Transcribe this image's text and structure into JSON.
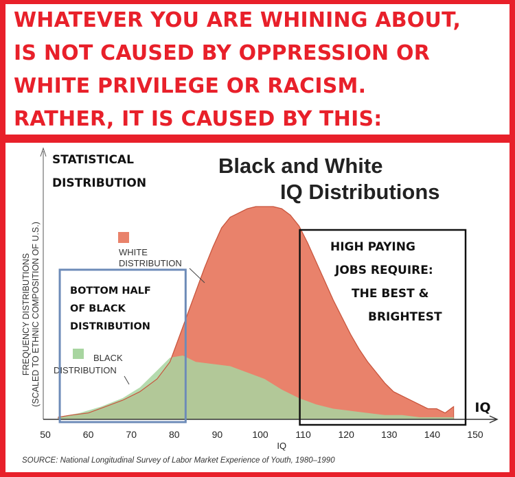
{
  "header": {
    "lines": [
      "WHATEVER YOU ARE WHINING ABOUT,",
      "IS NOT CAUSED BY OPPRESSION OR",
      "WHITE PRIVILEGE OR RACISM.",
      "RATHER, IT IS CAUSED BY THIS:"
    ]
  },
  "colors": {
    "frame": "#e8202a",
    "white_series": "#e9826b",
    "black_series": "#a8d5a0",
    "bottom_half_box": "#6d8bb8",
    "high_paying_box": "#111111"
  },
  "chart_data": {
    "type": "area",
    "title": "Black and White",
    "subtitle": "IQ Distributions",
    "xlabel": "IQ",
    "xaxis_end_label": "IQ",
    "ylabel_line1": "FREQUENCY DISTRIBUTIONS",
    "ylabel_line2": "(SCALED TO ETHNIC COMPOSITION OF U.S.)",
    "xlim": [
      50,
      150
    ],
    "x_ticks": [
      50,
      60,
      70,
      80,
      90,
      100,
      110,
      120,
      130,
      140,
      150
    ],
    "ylim": [
      0,
      100
    ],
    "grid": false,
    "series": [
      {
        "label_line1": "WHITE",
        "label_line2": "DISTRIBUTION",
        "color": "#e9826b",
        "x": [
          53,
          56,
          60,
          64,
          68,
          72,
          76,
          79,
          81,
          83,
          85,
          87,
          89,
          91,
          93,
          95,
          97,
          99,
          101,
          103,
          105,
          107,
          109,
          111,
          113,
          115,
          117,
          119,
          121,
          123,
          125,
          127,
          129,
          131,
          133,
          135,
          137,
          139,
          141,
          143,
          145
        ],
        "y": [
          1,
          2,
          3,
          6,
          9,
          13,
          19,
          27,
          38,
          49,
          60,
          71,
          81,
          90,
          95,
          97,
          99,
          100,
          100,
          100,
          99,
          96,
          91,
          83,
          74,
          65,
          56,
          48,
          40,
          33,
          27,
          22,
          17,
          13,
          11,
          9,
          7,
          5,
          5,
          3,
          6
        ]
      },
      {
        "label_line1": "BLACK",
        "label_line2": "DISTRIBUTION",
        "color": "#a8d5a0",
        "x": [
          53,
          58,
          63,
          68,
          72,
          76,
          79,
          82,
          85,
          89,
          93,
          97,
          101,
          105,
          109,
          113,
          117,
          121,
          125,
          129,
          133,
          137,
          141,
          145
        ],
        "y": [
          1,
          3,
          6,
          10,
          15,
          23,
          29,
          30,
          27,
          26,
          25,
          22,
          19,
          14,
          10,
          7,
          5,
          4,
          3,
          2,
          2,
          1,
          1,
          1
        ]
      }
    ],
    "annotations": {
      "top_left_line1": "STATISTICAL",
      "top_left_line2": "DISTRIBUTION",
      "bottom_half": [
        "BOTTOM HALF",
        "OF BLACK",
        "DISTRIBUTION"
      ],
      "high_paying": [
        "HIGH PAYING",
        "JOBS REQUIRE:",
        "THE BEST &",
        "BRIGHTEST"
      ]
    },
    "bottom_half_range": [
      54,
      82
    ],
    "high_paying_range": [
      110,
      150
    ],
    "source": "SOURCE: National Longitudinal Survey of Labor Market Experience of Youth, 1980–1990"
  }
}
